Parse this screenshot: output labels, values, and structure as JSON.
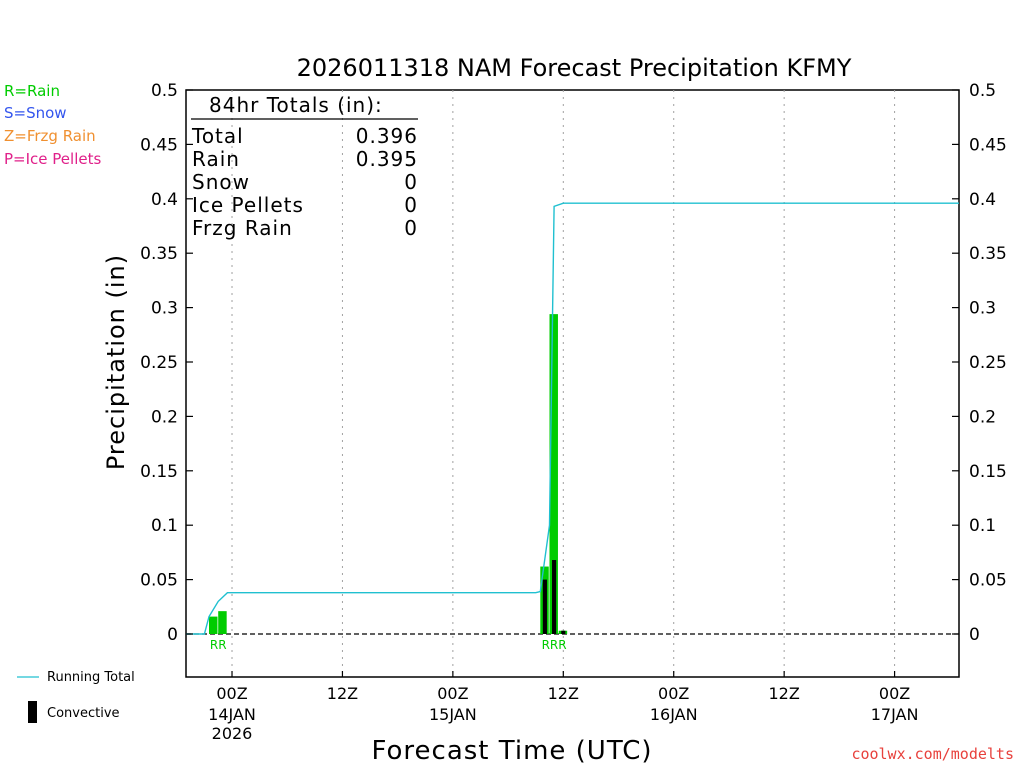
{
  "ptype_legend": [
    {
      "label": "R=Rain",
      "color": "#00cc00"
    },
    {
      "label": "S=Snow",
      "color": "#3355ee"
    },
    {
      "label": "Z=Frzg Rain",
      "color": "#f09030"
    },
    {
      "label": "P=Ice Pellets",
      "color": "#e0208a"
    }
  ],
  "series_legend": {
    "running_total": "Running Total",
    "convective": "Convective"
  },
  "credit": "coolwx.com/modelts",
  "totals_box": {
    "heading": "84hr Totals (in):",
    "rows": [
      {
        "label": "Total",
        "value": "0.396"
      },
      {
        "label": "Rain",
        "value": "0.395"
      },
      {
        "label": "Snow",
        "value": "0"
      },
      {
        "label": "Ice Pellets",
        "value": "0"
      },
      {
        "label": "Frzg Rain",
        "value": "0"
      }
    ]
  },
  "chart_data": {
    "type": "bar",
    "title": "2026011318 NAM Forecast Precipitation KFMY",
    "xlabel": "Forecast Time (UTC)",
    "ylabel": "Precipitation (in)",
    "ylim": [
      0,
      0.5
    ],
    "y_ticks": [
      "0",
      "0.05",
      "0.1",
      "0.15",
      "0.2",
      "0.25",
      "0.3",
      "0.35",
      "0.4",
      "0.45",
      "0.5"
    ],
    "x_range_hours": [
      -5,
      79
    ],
    "x_ticks": [
      {
        "h": 0,
        "label": "00Z",
        "date": "14JAN",
        "year": "2026"
      },
      {
        "h": 12,
        "label": "12Z",
        "date": "",
        "year": ""
      },
      {
        "h": 24,
        "label": "00Z",
        "date": "15JAN",
        "year": ""
      },
      {
        "h": 36,
        "label": "12Z",
        "date": "",
        "year": ""
      },
      {
        "h": 48,
        "label": "00Z",
        "date": "16JAN",
        "year": ""
      },
      {
        "h": 60,
        "label": "12Z",
        "date": "",
        "year": ""
      },
      {
        "h": 72,
        "label": "00Z",
        "date": "17JAN",
        "year": ""
      }
    ],
    "grid": "vertical dotted at x ticks",
    "series": [
      {
        "name": "Rain",
        "color": "#00cc00",
        "bars": [
          {
            "h": -2,
            "value": 0.016
          },
          {
            "h": -1,
            "value": 0.021
          },
          {
            "h": 34,
            "value": 0.062
          },
          {
            "h": 35,
            "value": 0.294
          },
          {
            "h": 36,
            "value": 0.003
          }
        ]
      },
      {
        "name": "Convective",
        "color": "#000000",
        "bars": [
          {
            "h": 34,
            "value": 0.05
          },
          {
            "h": 35,
            "value": 0.068
          },
          {
            "h": 36,
            "value": 0.003
          }
        ]
      },
      {
        "name": "Running Total",
        "color": "#20c0d0",
        "points": [
          {
            "h": -5,
            "value": 0
          },
          {
            "h": -3,
            "value": 0
          },
          {
            "h": -2.5,
            "value": 0.016
          },
          {
            "h": -1.5,
            "value": 0.03
          },
          {
            "h": -0.5,
            "value": 0.038
          },
          {
            "h": 33,
            "value": 0.038
          },
          {
            "h": 33.5,
            "value": 0.039
          },
          {
            "h": 34.5,
            "value": 0.1
          },
          {
            "h": 35,
            "value": 0.393
          },
          {
            "h": 36,
            "value": 0.396
          },
          {
            "h": 79,
            "value": 0.396
          }
        ]
      }
    ],
    "ptype_markers": [
      {
        "h": -1.5,
        "text": "RR"
      },
      {
        "h": 35,
        "text": "RRR"
      }
    ]
  }
}
